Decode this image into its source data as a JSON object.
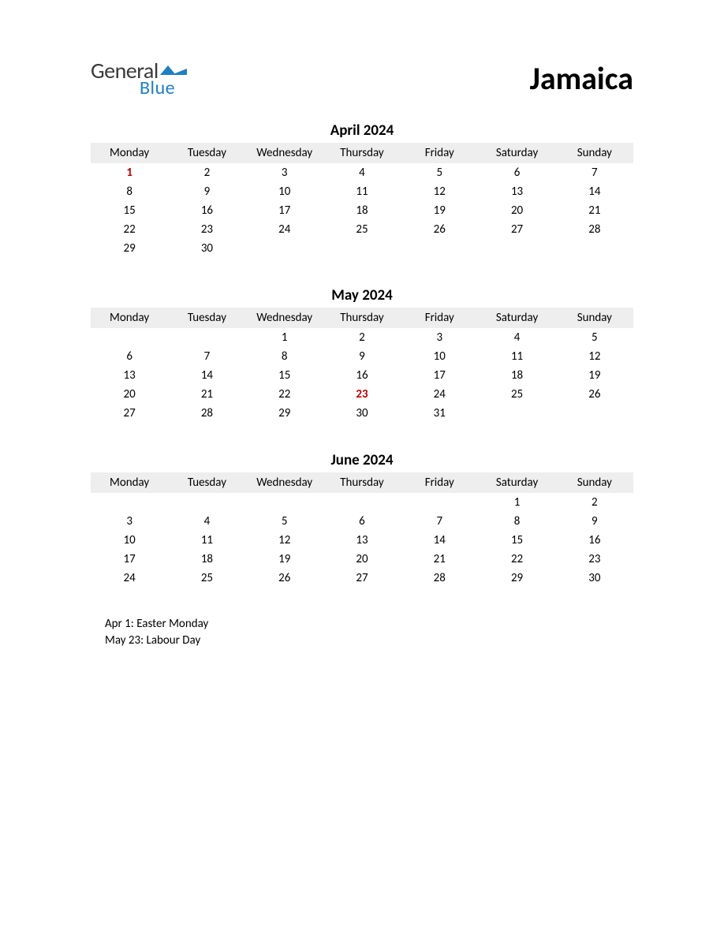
{
  "logo": {
    "text_top": "General",
    "text_bottom": "Blue",
    "color_general": "#3a3a3a",
    "color_blue": "#1e7fc2",
    "flag_color": "#1e7fc2"
  },
  "country": "Jamaica",
  "day_headers": [
    "Monday",
    "Tuesday",
    "Wednesday",
    "Thursday",
    "Friday",
    "Saturday",
    "Sunday"
  ],
  "header_bg": "#eeeeee",
  "holiday_color": "#c00000",
  "months": [
    {
      "title": "April 2024",
      "weeks": [
        [
          {
            "d": "1",
            "h": true
          },
          {
            "d": "2"
          },
          {
            "d": "3"
          },
          {
            "d": "4"
          },
          {
            "d": "5"
          },
          {
            "d": "6"
          },
          {
            "d": "7"
          }
        ],
        [
          {
            "d": "8"
          },
          {
            "d": "9"
          },
          {
            "d": "10"
          },
          {
            "d": "11"
          },
          {
            "d": "12"
          },
          {
            "d": "13"
          },
          {
            "d": "14"
          }
        ],
        [
          {
            "d": "15"
          },
          {
            "d": "16"
          },
          {
            "d": "17"
          },
          {
            "d": "18"
          },
          {
            "d": "19"
          },
          {
            "d": "20"
          },
          {
            "d": "21"
          }
        ],
        [
          {
            "d": "22"
          },
          {
            "d": "23"
          },
          {
            "d": "24"
          },
          {
            "d": "25"
          },
          {
            "d": "26"
          },
          {
            "d": "27"
          },
          {
            "d": "28"
          }
        ],
        [
          {
            "d": "29"
          },
          {
            "d": "30"
          },
          {
            "d": ""
          },
          {
            "d": ""
          },
          {
            "d": ""
          },
          {
            "d": ""
          },
          {
            "d": ""
          }
        ]
      ]
    },
    {
      "title": "May 2024",
      "weeks": [
        [
          {
            "d": ""
          },
          {
            "d": ""
          },
          {
            "d": "1"
          },
          {
            "d": "2"
          },
          {
            "d": "3"
          },
          {
            "d": "4"
          },
          {
            "d": "5"
          }
        ],
        [
          {
            "d": "6"
          },
          {
            "d": "7"
          },
          {
            "d": "8"
          },
          {
            "d": "9"
          },
          {
            "d": "10"
          },
          {
            "d": "11"
          },
          {
            "d": "12"
          }
        ],
        [
          {
            "d": "13"
          },
          {
            "d": "14"
          },
          {
            "d": "15"
          },
          {
            "d": "16"
          },
          {
            "d": "17"
          },
          {
            "d": "18"
          },
          {
            "d": "19"
          }
        ],
        [
          {
            "d": "20"
          },
          {
            "d": "21"
          },
          {
            "d": "22"
          },
          {
            "d": "23",
            "h": true
          },
          {
            "d": "24"
          },
          {
            "d": "25"
          },
          {
            "d": "26"
          }
        ],
        [
          {
            "d": "27"
          },
          {
            "d": "28"
          },
          {
            "d": "29"
          },
          {
            "d": "30"
          },
          {
            "d": "31"
          },
          {
            "d": ""
          },
          {
            "d": ""
          }
        ]
      ]
    },
    {
      "title": "June 2024",
      "weeks": [
        [
          {
            "d": ""
          },
          {
            "d": ""
          },
          {
            "d": ""
          },
          {
            "d": ""
          },
          {
            "d": ""
          },
          {
            "d": "1"
          },
          {
            "d": "2"
          }
        ],
        [
          {
            "d": "3"
          },
          {
            "d": "4"
          },
          {
            "d": "5"
          },
          {
            "d": "6"
          },
          {
            "d": "7"
          },
          {
            "d": "8"
          },
          {
            "d": "9"
          }
        ],
        [
          {
            "d": "10"
          },
          {
            "d": "11"
          },
          {
            "d": "12"
          },
          {
            "d": "13"
          },
          {
            "d": "14"
          },
          {
            "d": "15"
          },
          {
            "d": "16"
          }
        ],
        [
          {
            "d": "17"
          },
          {
            "d": "18"
          },
          {
            "d": "19"
          },
          {
            "d": "20"
          },
          {
            "d": "21"
          },
          {
            "d": "22"
          },
          {
            "d": "23"
          }
        ],
        [
          {
            "d": "24"
          },
          {
            "d": "25"
          },
          {
            "d": "26"
          },
          {
            "d": "27"
          },
          {
            "d": "28"
          },
          {
            "d": "29"
          },
          {
            "d": "30"
          }
        ]
      ]
    }
  ],
  "holidays": [
    "Apr 1: Easter Monday",
    "May 23: Labour Day"
  ]
}
